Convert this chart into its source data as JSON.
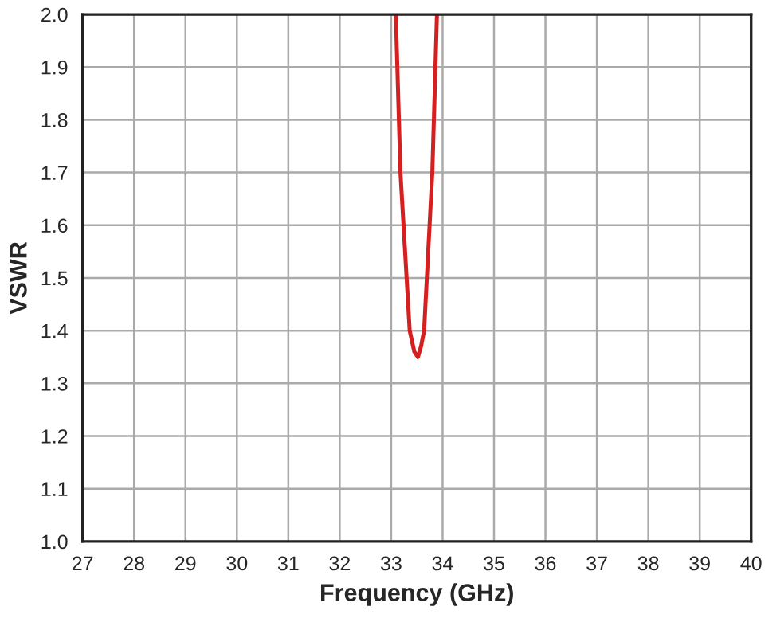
{
  "chart_data": {
    "type": "line",
    "xlabel": "Frequency (GHz)",
    "ylabel": "VSWR",
    "series": [
      {
        "color": "#d42020",
        "x": [
          33.09,
          33.18,
          33.27,
          33.36,
          33.45,
          33.52,
          33.58,
          33.64,
          33.72,
          33.8,
          33.89
        ],
        "values": [
          2.0,
          1.7,
          1.55,
          1.4,
          1.36,
          1.35,
          1.37,
          1.4,
          1.55,
          1.7,
          2.0
        ]
      }
    ],
    "xlim": [
      27,
      40
    ],
    "xticks": [
      27,
      28,
      29,
      30,
      31,
      32,
      33,
      34,
      35,
      36,
      37,
      38,
      39,
      40
    ],
    "ylim": [
      1.0,
      2.0
    ],
    "yticks": [
      {
        "value": 1.0,
        "label": "1.0"
      },
      {
        "value": 1.1,
        "label": "1.1"
      },
      {
        "value": 1.2,
        "label": "1.2"
      },
      {
        "value": 1.3,
        "label": "1.3"
      },
      {
        "value": 1.4,
        "label": "1.4"
      },
      {
        "value": 1.5,
        "label": "1.5"
      },
      {
        "value": 1.6,
        "label": "1.6"
      },
      {
        "value": 1.7,
        "label": "1.7"
      },
      {
        "value": 1.8,
        "label": "1.8"
      },
      {
        "value": 1.9,
        "label": "1.9"
      },
      {
        "value": 2.0,
        "label": "2.0"
      }
    ],
    "grid": true,
    "legend": false
  }
}
